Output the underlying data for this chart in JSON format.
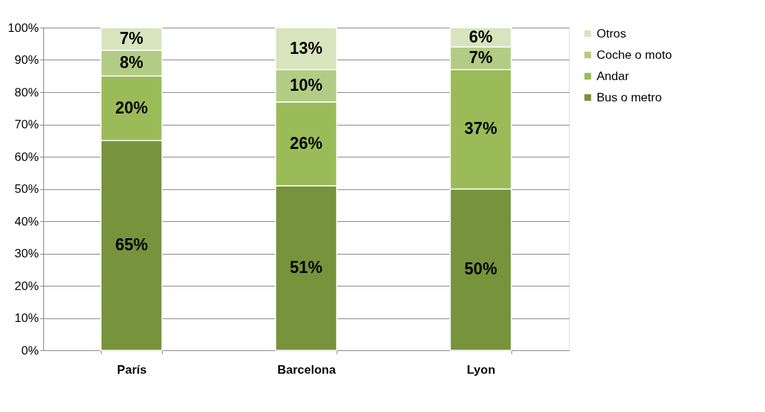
{
  "chart_data": {
    "type": "bar",
    "stacked": true,
    "categories": [
      "París",
      "Barcelona",
      "Lyon"
    ],
    "series": [
      {
        "name": "Bus o metro",
        "color": "#77933c",
        "values": [
          65,
          51,
          50
        ],
        "value_labels": [
          "65%",
          "51%",
          "50%"
        ]
      },
      {
        "name": "Andar",
        "color": "#9bbb59",
        "values": [
          20,
          26,
          37
        ],
        "value_labels": [
          "20%",
          "26%",
          "37%"
        ]
      },
      {
        "name": "Coche o moto",
        "color": "#b3cc85",
        "values": [
          8,
          10,
          7
        ],
        "value_labels": [
          "8%",
          "10%",
          "7%"
        ]
      },
      {
        "name": "Otros",
        "color": "#d7e4bd",
        "values": [
          7,
          13,
          6
        ],
        "value_labels": [
          "7%",
          "13%",
          "6%"
        ]
      }
    ],
    "ylim": [
      0,
      100
    ],
    "yticks": [
      {
        "value": 0,
        "label": "0%"
      },
      {
        "value": 10,
        "label": "10%"
      },
      {
        "value": 20,
        "label": "20%"
      },
      {
        "value": 30,
        "label": "30%"
      },
      {
        "value": 40,
        "label": "40%"
      },
      {
        "value": 50,
        "label": "50%"
      },
      {
        "value": 60,
        "label": "60%"
      },
      {
        "value": 70,
        "label": "70%"
      },
      {
        "value": 80,
        "label": "80%"
      },
      {
        "value": 90,
        "label": "90%"
      },
      {
        "value": 100,
        "label": "100%"
      }
    ],
    "grid": "y",
    "legend": "right"
  }
}
